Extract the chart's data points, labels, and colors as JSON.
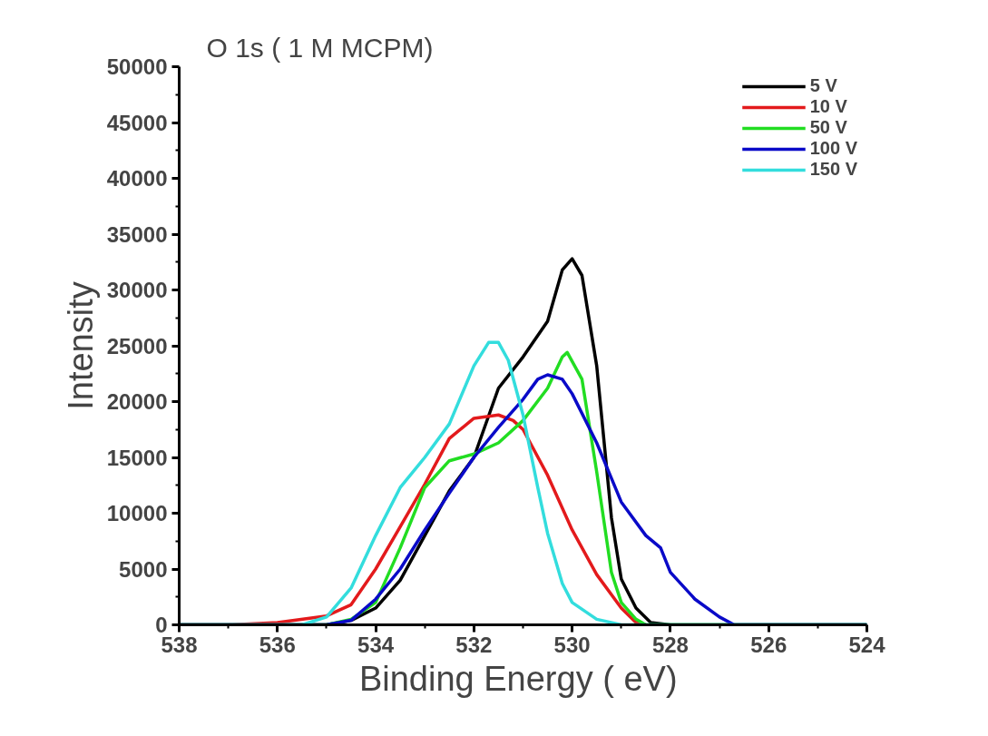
{
  "chart_data": {
    "type": "line",
    "title": "O 1s ( 1 M MCPM)",
    "xlabel": "Binding Energy  ( eV)",
    "ylabel": "Intensity",
    "xlim": [
      538,
      524
    ],
    "xticks": [
      538,
      536,
      534,
      532,
      530,
      528,
      526,
      524
    ],
    "ylim": [
      0,
      50000
    ],
    "yticks": [
      0,
      5000,
      10000,
      15000,
      20000,
      25000,
      30000,
      35000,
      40000,
      45000,
      50000
    ],
    "grid": false,
    "legend": "top right",
    "line_style": "solid",
    "marker": "none",
    "series": [
      {
        "name": "5 V",
        "color": "#000000",
        "x": [
          538,
          536,
          535,
          534.5,
          534,
          533.5,
          533,
          532.5,
          532,
          531.5,
          531,
          530.5,
          530.2,
          530,
          529.8,
          529.5,
          529.2,
          529,
          528.7,
          528.4,
          528,
          526,
          524
        ],
        "values": [
          0,
          0,
          0,
          400,
          1500,
          4000,
          8000,
          12000,
          15000,
          21200,
          24000,
          27200,
          31800,
          32800,
          31300,
          23200,
          9600,
          4100,
          1500,
          200,
          0,
          0,
          0
        ]
      },
      {
        "name": "10 V",
        "color": "#e31a1c",
        "x": [
          538,
          537,
          536,
          535,
          534.5,
          534,
          533.5,
          533,
          532.5,
          532,
          531.5,
          531.2,
          531,
          530.5,
          530,
          529.5,
          529,
          528.7,
          528.5
        ],
        "values": [
          0,
          0,
          200,
          800,
          1800,
          5000,
          8800,
          12600,
          16700,
          18500,
          18800,
          18300,
          17500,
          13400,
          8500,
          4500,
          1500,
          200,
          0
        ]
      },
      {
        "name": "50 V",
        "color": "#22dd22",
        "x": [
          538,
          535,
          534.5,
          534,
          533.5,
          533,
          532.5,
          532,
          531.5,
          531,
          530.5,
          530.2,
          530.1,
          529.8,
          529.5,
          529.2,
          529,
          528.7,
          528.5,
          526,
          524
        ],
        "values": [
          0,
          0,
          500,
          2000,
          6900,
          12300,
          14700,
          15300,
          16300,
          18300,
          21200,
          24000,
          24400,
          22000,
          13700,
          4700,
          2000,
          500,
          0,
          0,
          0
        ]
      },
      {
        "name": "100 V",
        "color": "#0a0ac8",
        "x": [
          538,
          535,
          534.5,
          534,
          533.5,
          533,
          532.5,
          532,
          531.5,
          531,
          530.7,
          530.5,
          530.2,
          530,
          529.5,
          529,
          528.5,
          528.2,
          528,
          527.5,
          527,
          526.7,
          524
        ],
        "values": [
          0,
          0,
          400,
          2300,
          5000,
          8500,
          11800,
          15000,
          17700,
          20200,
          22000,
          22400,
          22000,
          20700,
          16300,
          11000,
          8000,
          6900,
          4700,
          2300,
          700,
          0,
          0
        ]
      },
      {
        "name": "150 V",
        "color": "#33dddd",
        "x": [
          538,
          535.5,
          535,
          534.5,
          534,
          533.5,
          533,
          532.5,
          532,
          531.7,
          531.5,
          531.3,
          531,
          530.7,
          530.5,
          530.2,
          530,
          529.5,
          529,
          524
        ],
        "values": [
          0,
          0,
          700,
          3300,
          8000,
          12300,
          15000,
          18000,
          23200,
          25300,
          25300,
          23700,
          18800,
          12300,
          8200,
          3700,
          2000,
          500,
          0,
          0
        ]
      }
    ]
  }
}
